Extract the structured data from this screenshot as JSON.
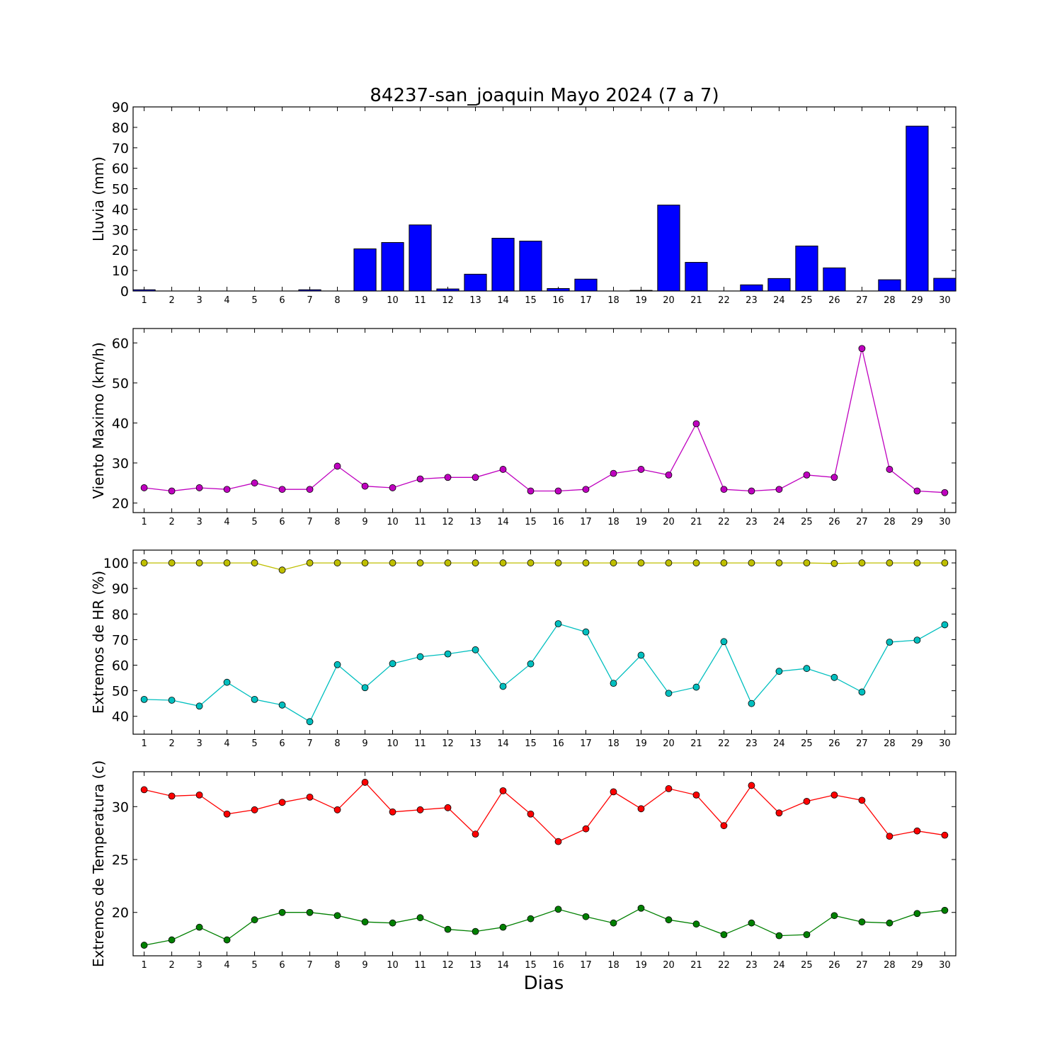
{
  "title": "84237-san_joaquin Mayo 2024  (7 a 7)",
  "xlabel": "Dias",
  "chart_data": [
    {
      "type": "bar",
      "ylabel": "Lluvia (mm)",
      "ylim": [
        0,
        90
      ],
      "yticks": [
        0,
        10,
        20,
        30,
        40,
        50,
        60,
        70,
        80,
        90
      ],
      "x": [
        1,
        2,
        3,
        4,
        5,
        6,
        7,
        8,
        9,
        10,
        11,
        12,
        13,
        14,
        15,
        16,
        17,
        18,
        19,
        20,
        21,
        22,
        23,
        24,
        25,
        26,
        27,
        28,
        29,
        30
      ],
      "series": [
        {
          "color": "#0000ff",
          "values": [
            0.6,
            0,
            0,
            0,
            0,
            0,
            0.6,
            0,
            20.6,
            23.7,
            32.3,
            1,
            8.2,
            25.8,
            24.4,
            1.2,
            5.8,
            0,
            0.3,
            42,
            14,
            0,
            3,
            6.1,
            22,
            11.3,
            0,
            5.5,
            80.6,
            6.2
          ]
        }
      ]
    },
    {
      "type": "line",
      "ylabel": "Viento Maximo (km/h)",
      "ylim": [
        17.6,
        63.6
      ],
      "yticks": [
        20,
        30,
        40,
        50,
        60
      ],
      "x": [
        1,
        2,
        3,
        4,
        5,
        6,
        7,
        8,
        9,
        10,
        11,
        12,
        13,
        14,
        15,
        16,
        17,
        18,
        19,
        20,
        21,
        22,
        23,
        24,
        25,
        26,
        27,
        28,
        29,
        30
      ],
      "series": [
        {
          "color": "#bf00bf",
          "values": [
            23.8,
            23.0,
            23.8,
            23.4,
            25.0,
            23.4,
            23.4,
            29.2,
            24.2,
            23.8,
            26.0,
            26.4,
            26.4,
            28.4,
            23.0,
            23.0,
            23.4,
            27.4,
            28.4,
            27.0,
            39.8,
            23.4,
            23.0,
            23.4,
            27.0,
            26.4,
            58.6,
            28.4,
            23.0,
            22.6
          ]
        }
      ]
    },
    {
      "type": "line",
      "ylabel": "Extremos de HR (%)",
      "ylim": [
        33,
        105
      ],
      "yticks": [
        40,
        50,
        60,
        70,
        80,
        90,
        100
      ],
      "x": [
        1,
        2,
        3,
        4,
        5,
        6,
        7,
        8,
        9,
        10,
        11,
        12,
        13,
        14,
        15,
        16,
        17,
        18,
        19,
        20,
        21,
        22,
        23,
        24,
        25,
        26,
        27,
        28,
        29,
        30
      ],
      "series": [
        {
          "color": "#bfbf00",
          "values": [
            100,
            100,
            100,
            100,
            100,
            97.2,
            100,
            100,
            100,
            100,
            100,
            100,
            100,
            100,
            100,
            100,
            100,
            100,
            100,
            100,
            100,
            100,
            100,
            100,
            100,
            99.8,
            100,
            100,
            100,
            100
          ]
        },
        {
          "color": "#00bfbf",
          "values": [
            46.6,
            46.3,
            44,
            53.3,
            46.6,
            44.4,
            37.9,
            60.2,
            51.2,
            60.6,
            63.3,
            64.4,
            66,
            51.7,
            60.5,
            76.2,
            73,
            52.9,
            63.9,
            49,
            51.4,
            69.2,
            45,
            57.6,
            58.7,
            55.2,
            49.5,
            69,
            69.8,
            75.8
          ]
        }
      ]
    },
    {
      "type": "line",
      "ylabel": "Extremos de Temperatura (c)",
      "ylim": [
        15.9,
        33.3
      ],
      "yticks": [
        20,
        25,
        30
      ],
      "x": [
        1,
        2,
        3,
        4,
        5,
        6,
        7,
        8,
        9,
        10,
        11,
        12,
        13,
        14,
        15,
        16,
        17,
        18,
        19,
        20,
        21,
        22,
        23,
        24,
        25,
        26,
        27,
        28,
        29,
        30
      ],
      "series": [
        {
          "color": "#ff0000",
          "values": [
            31.6,
            31,
            31.1,
            29.3,
            29.7,
            30.4,
            30.9,
            29.7,
            32.3,
            29.5,
            29.7,
            29.9,
            27.4,
            31.5,
            29.3,
            26.7,
            27.9,
            31.4,
            29.8,
            31.7,
            31.1,
            28.2,
            32,
            29.4,
            30.5,
            31.1,
            30.6,
            27.2,
            27.7,
            27.3
          ]
        },
        {
          "color": "#008000",
          "values": [
            16.9,
            17.4,
            18.6,
            17.4,
            19.3,
            20,
            20,
            19.7,
            19.1,
            19,
            19.5,
            18.4,
            18.2,
            18.6,
            19.4,
            20.3,
            19.6,
            19,
            20.4,
            19.3,
            18.9,
            17.9,
            19,
            17.8,
            17.9,
            19.7,
            19.1,
            19,
            19.9,
            20.2
          ]
        }
      ]
    }
  ]
}
